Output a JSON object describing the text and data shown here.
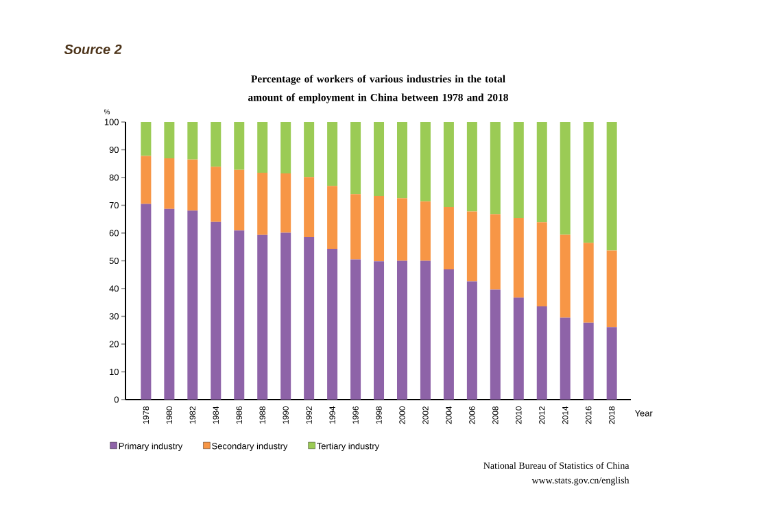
{
  "chart_data": {
    "type": "bar",
    "stacked": true,
    "title": "Percentage of workers of various industries in the total amount of employment in China between 1978 and 2018",
    "xlabel": "Year",
    "ylabel": "%",
    "categories": [
      "1978",
      "1980",
      "1982",
      "1984",
      "1986",
      "1988",
      "1990",
      "1992",
      "1994",
      "1996",
      "1998",
      "2000",
      "2002",
      "2004",
      "2006",
      "2008",
      "2010",
      "2012",
      "2014",
      "2016",
      "2018"
    ],
    "series": [
      {
        "name": "Primary industry",
        "color": "#8e63a8",
        "values": [
          70.5,
          68.7,
          68.1,
          64.0,
          60.9,
          59.3,
          60.1,
          58.5,
          54.3,
          50.5,
          49.8,
          50.0,
          50.0,
          46.9,
          42.6,
          39.6,
          36.7,
          33.6,
          29.5,
          27.7,
          26.1
        ]
      },
      {
        "name": "Secondary industry",
        "color": "#f79646",
        "values": [
          17.3,
          18.2,
          18.4,
          19.9,
          21.9,
          22.4,
          21.4,
          21.7,
          22.7,
          23.5,
          23.5,
          22.5,
          21.4,
          22.5,
          25.2,
          27.2,
          28.7,
          30.3,
          29.9,
          28.8,
          27.6
        ]
      },
      {
        "name": "Tertiary industry",
        "color": "#9bcb55",
        "values": [
          12.2,
          13.1,
          13.5,
          16.1,
          17.2,
          18.3,
          18.5,
          19.8,
          23.0,
          26.0,
          26.7,
          27.5,
          28.6,
          30.6,
          32.2,
          33.2,
          34.6,
          36.1,
          40.6,
          43.5,
          46.3
        ]
      }
    ],
    "ylim": [
      0,
      100
    ],
    "yticks": [
      0,
      10,
      20,
      30,
      40,
      50,
      60,
      70,
      80,
      90,
      100
    ],
    "legend": "bottom",
    "annotations": [
      "Source 2",
      "National Bureau of Statistics of China",
      "www.stats.gov.cn/english"
    ]
  }
}
